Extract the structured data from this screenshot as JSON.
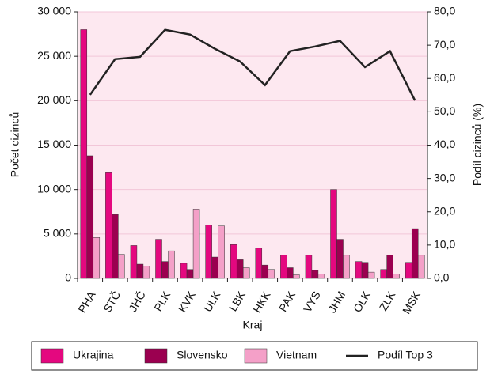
{
  "chart_data": {
    "type": "bar",
    "categories": [
      "PHA",
      "STČ",
      "JHČ",
      "PLK",
      "KVK",
      "ULK",
      "LBK",
      "HKK",
      "PAK",
      "VYS",
      "JHM",
      "OLK",
      "ZLK",
      "MSK"
    ],
    "series": [
      {
        "name": "Ukrajina",
        "color": "#e4087f",
        "values": [
          28000,
          11900,
          3700,
          4400,
          1700,
          6000,
          3800,
          3400,
          2600,
          2600,
          10000,
          1900,
          1000,
          1800
        ]
      },
      {
        "name": "Slovensko",
        "color": "#9b0050",
        "values": [
          13800,
          7200,
          1600,
          1900,
          1000,
          2400,
          2100,
          1500,
          1200,
          900,
          4400,
          1800,
          2600,
          5600
        ]
      },
      {
        "name": "Vietnam",
        "color": "#f4a0c8",
        "values": [
          4600,
          2700,
          1400,
          3100,
          7800,
          5900,
          1200,
          1000,
          400,
          500,
          2600,
          700,
          500,
          2600
        ]
      },
      {
        "name": "Podíl Top 3",
        "color": "#222222",
        "axis": "y2",
        "type": "line",
        "values": [
          55.1,
          65.8,
          66.5,
          74.6,
          73.2,
          68.9,
          65.1,
          58,
          68.2,
          69.6,
          71.3,
          63.4,
          68.2,
          53.4
        ]
      }
    ],
    "xlabel": "Kraj",
    "ylabel": "Počet cizinců",
    "y2label": "Podíl cizinců (%)",
    "ylim": [
      0,
      30000
    ],
    "yticks": [
      0,
      {
        "value": 5000,
        "label": "5 000"
      },
      {
        "value": 10000,
        "label": "10 000"
      },
      {
        "value": 15000,
        "label": "15 000"
      },
      {
        "value": 20000,
        "label": "20 000"
      },
      {
        "value": 25000,
        "label": "25 000"
      },
      {
        "value": 30000,
        "label": "30 000"
      }
    ],
    "y2lim": [
      0,
      80
    ],
    "y2ticks": [
      {
        "value": 0,
        "label": "0,0"
      },
      {
        "value": 10,
        "label": "10,0"
      },
      {
        "value": 20,
        "label": "20,0"
      },
      {
        "value": 30,
        "label": "30,0"
      },
      {
        "value": 40,
        "label": "40,0"
      },
      {
        "value": 50,
        "label": "50,0"
      },
      {
        "value": 60,
        "label": "60,0"
      },
      {
        "value": 70,
        "label": "70,0"
      },
      {
        "value": 80,
        "label": "80,0"
      }
    ],
    "grid": true,
    "legend": "bottom"
  }
}
